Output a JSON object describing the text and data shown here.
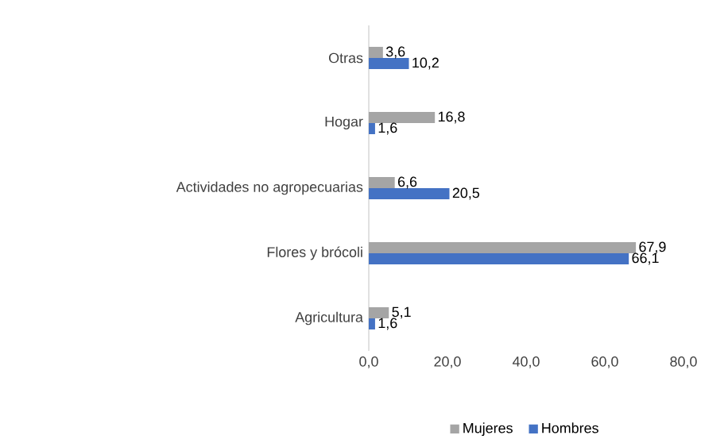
{
  "chart_data": {
    "type": "bar",
    "orientation": "horizontal",
    "categories": [
      "Otras",
      "Hogar",
      "Actividades no agropecuarias",
      "Flores y brócoli",
      "Agricultura"
    ],
    "series": [
      {
        "name": "Mujeres",
        "color": "#a5a5a5",
        "values": [
          3.6,
          16.8,
          6.6,
          67.9,
          5.1
        ],
        "value_labels": [
          "3,6",
          "16,8",
          "6,6",
          "67,9",
          "5,1"
        ]
      },
      {
        "name": "Hombres",
        "color": "#4472c4",
        "values": [
          10.2,
          1.6,
          20.5,
          66.1,
          1.6
        ],
        "value_labels": [
          "10,2",
          "1,6",
          "20,5",
          "66,1",
          "1,6"
        ]
      }
    ],
    "xlim": [
      0,
      80
    ],
    "xticks": [
      {
        "value": 0,
        "label": "0,0"
      },
      {
        "value": 20,
        "label": "20,0"
      },
      {
        "value": 40,
        "label": "40,0"
      },
      {
        "value": 60,
        "label": "60,0"
      },
      {
        "value": 80,
        "label": "80,0"
      }
    ],
    "legend": "bottom",
    "grid": false
  }
}
